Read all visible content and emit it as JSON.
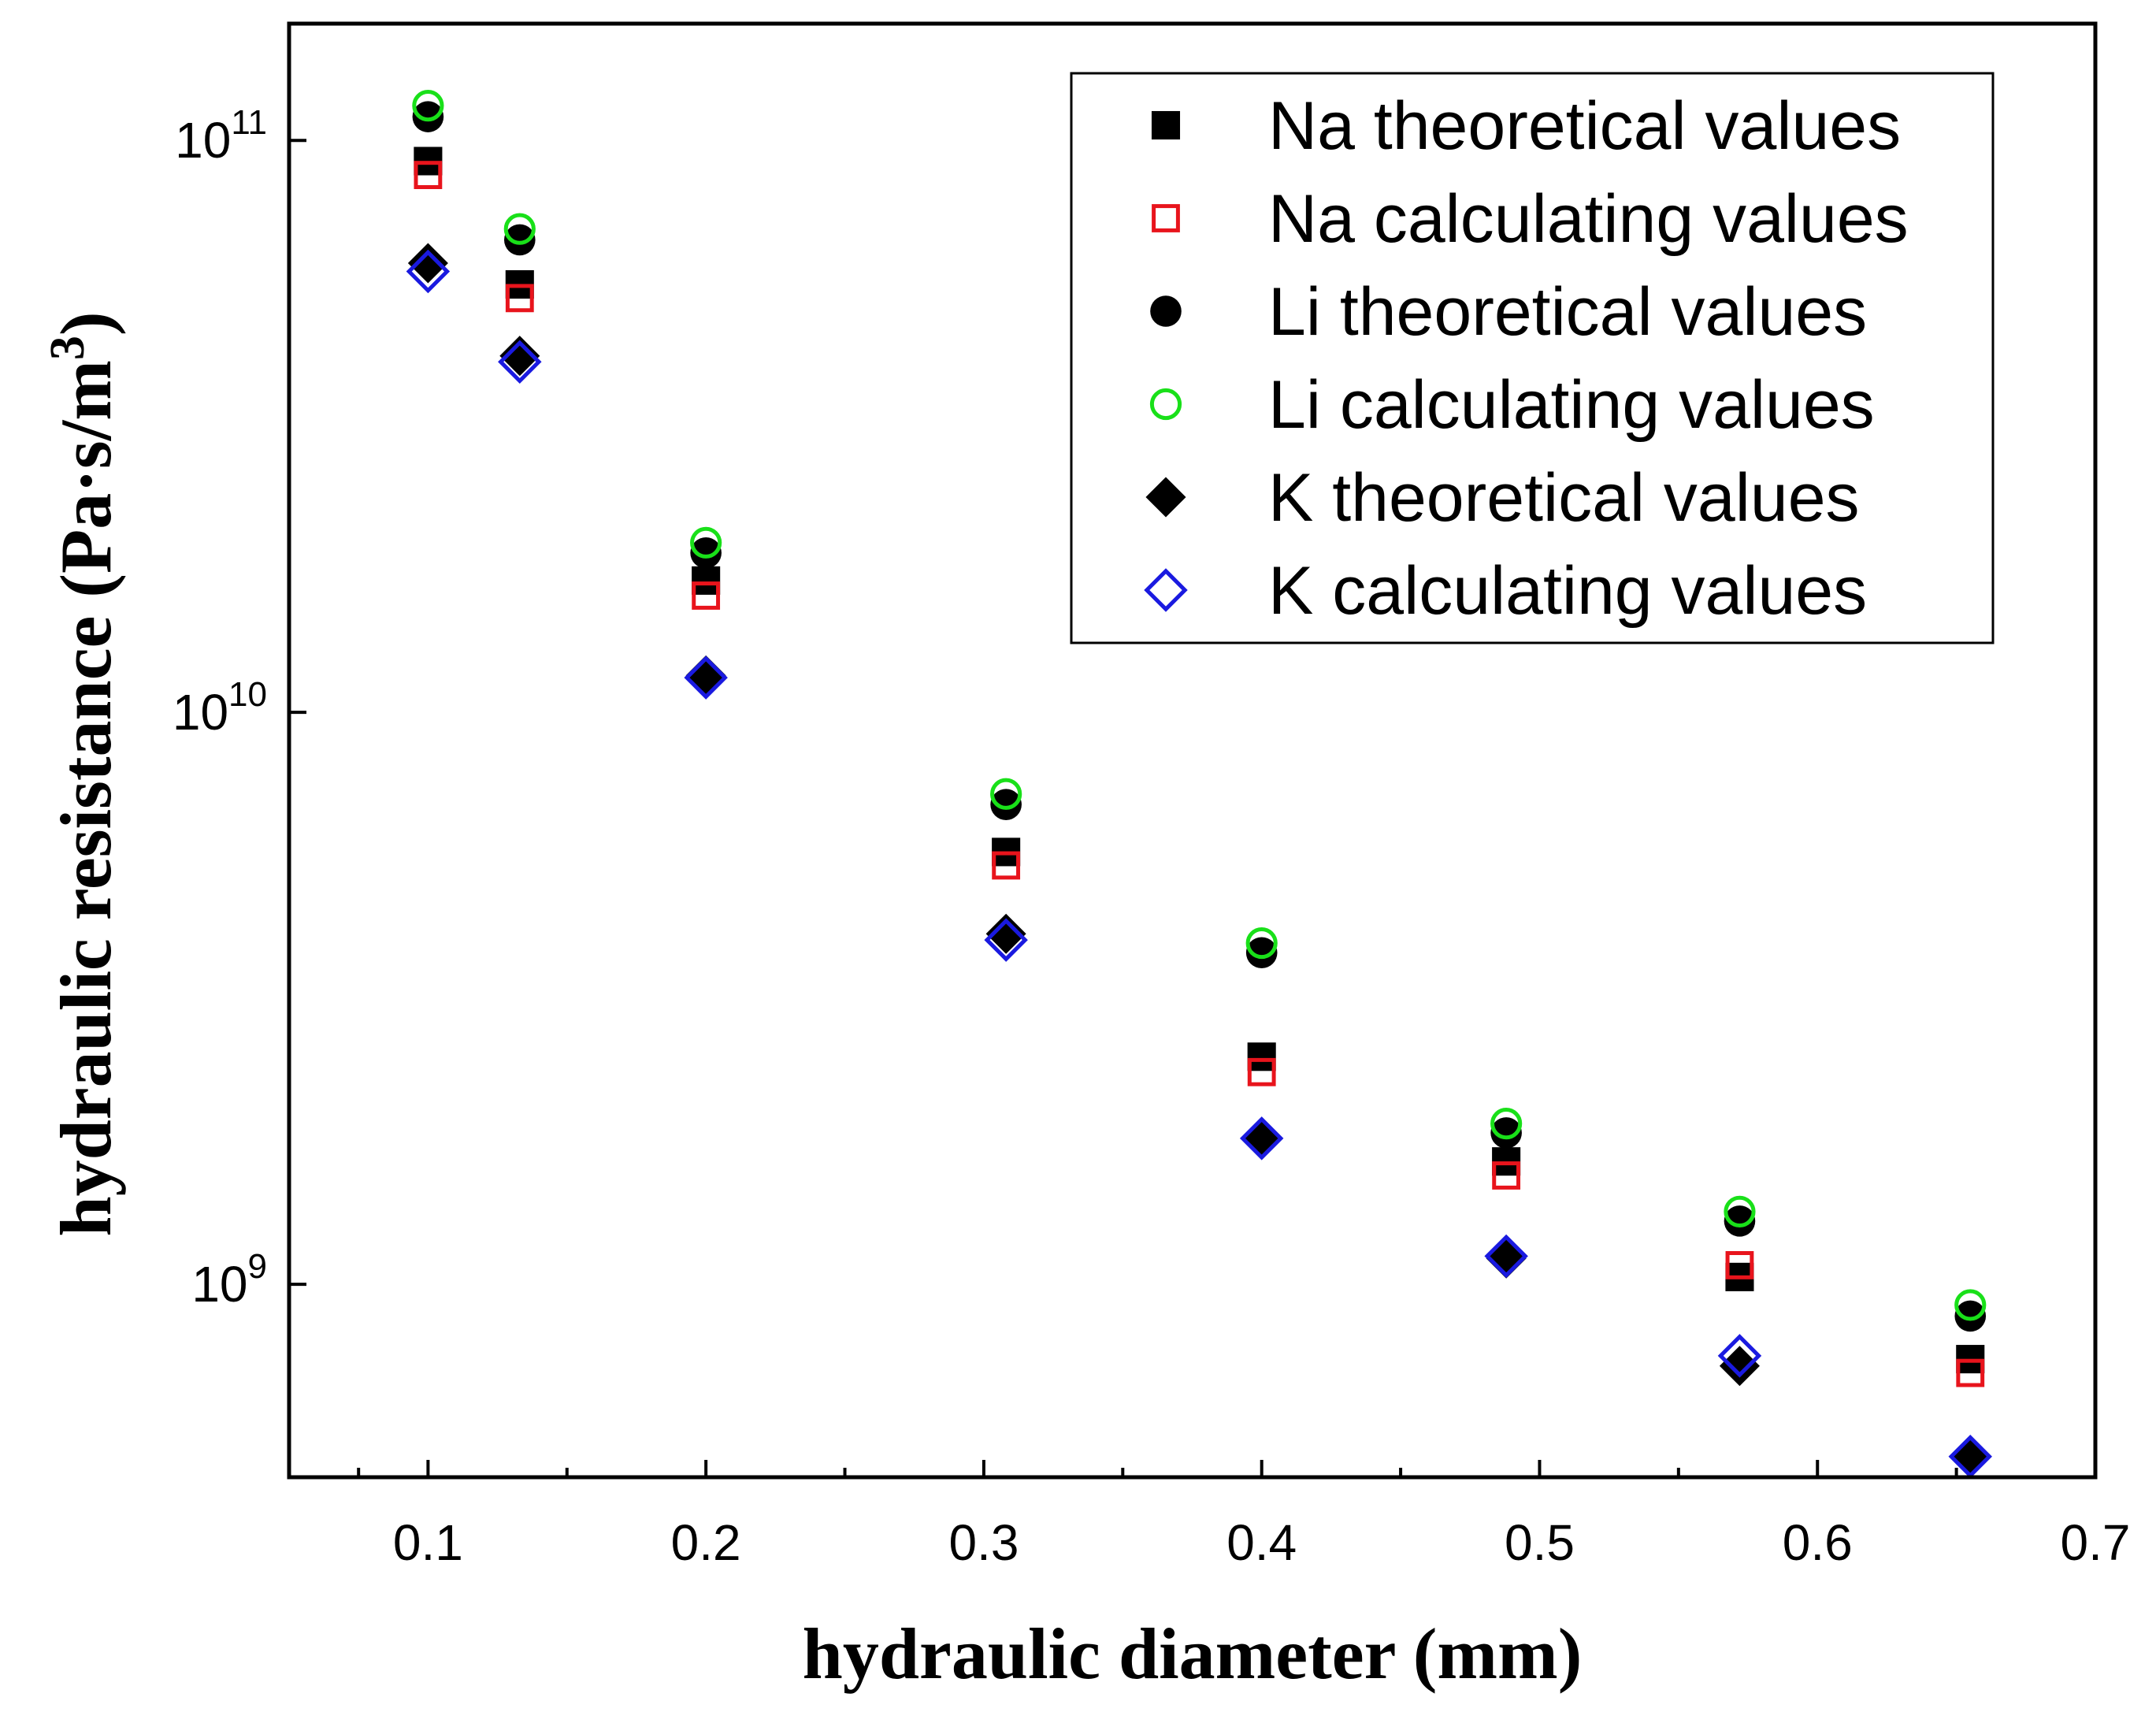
{
  "chart_data": {
    "type": "scatter",
    "title": "",
    "xlabel": "hydraulic diameter (mm)",
    "ylabel": "hydraulic resistance (Pa·s/m",
    "ylabel_sup": "3",
    "ylabel_close": ")",
    "xlim": [
      0.05,
      0.7
    ],
    "ylim": [
      460000000,
      160000000000
    ],
    "yscale": "log",
    "x_ticks": [
      "0.1",
      "0.2",
      "0.3",
      "0.4",
      "0.5",
      "0.6",
      "0.7"
    ],
    "y_ticks": [
      {
        "value": 1000000000,
        "base": "10",
        "exp": "9"
      },
      {
        "value": 10000000000,
        "base": "10",
        "exp": "10"
      },
      {
        "value": 100000000000,
        "base": "10",
        "exp": "11"
      }
    ],
    "legend_position": "top-right",
    "x": [
      0.1,
      0.133,
      0.2,
      0.308,
      0.4,
      0.488,
      0.572,
      0.655
    ],
    "series": [
      {
        "name": "Na theoretical values",
        "marker": "square",
        "filled": true,
        "color": "#000000",
        "values": [
          92000000000,
          56000000000,
          17000000000,
          5700000000,
          2500000000,
          1640000000,
          1030000000,
          740000000
        ]
      },
      {
        "name": "Na calculating values",
        "marker": "square",
        "filled": false,
        "color": "#e8141c",
        "values": [
          87000000000,
          53000000000,
          16000000000,
          5400000000,
          2350000000,
          1550000000,
          1080000000,
          700000000
        ]
      },
      {
        "name": "Li theoretical values",
        "marker": "circle",
        "filled": true,
        "color": "#000000",
        "values": [
          110000000000,
          67000000000,
          19000000000,
          6900000000,
          3800000000,
          1840000000,
          1290000000,
          880000000
        ]
      },
      {
        "name": "Li calculating values",
        "marker": "circle",
        "filled": false,
        "color": "#19e019",
        "values": [
          115000000000,
          70000000000,
          19800000000,
          7200000000,
          3950000000,
          1910000000,
          1340000000,
          920000000
        ]
      },
      {
        "name": "K theoretical values",
        "marker": "diamond",
        "filled": true,
        "color": "#000000",
        "values": [
          61000000000,
          42000000000,
          11600000000,
          4100000000,
          1790000000,
          1110000000,
          720000000,
          500000000
        ]
      },
      {
        "name": "K calculating values",
        "marker": "diamond",
        "filled": false,
        "color": "#1a1ae0",
        "values": [
          59000000000,
          41000000000,
          11500000000,
          4000000000,
          1800000000,
          1120000000,
          750000000,
          500000000
        ]
      }
    ]
  }
}
